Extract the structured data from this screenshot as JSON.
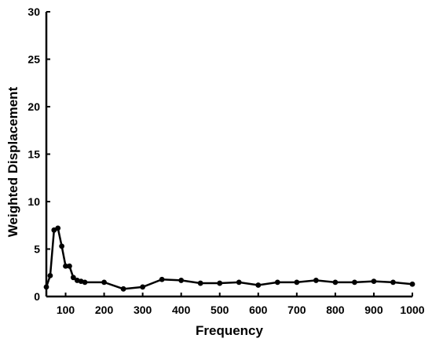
{
  "chart_data": {
    "type": "line",
    "xlabel": "Frequency",
    "ylabel": "Weighted Displacement",
    "xlim": [
      50,
      1000
    ],
    "ylim": [
      0,
      30
    ],
    "xticks": [
      100,
      200,
      300,
      400,
      500,
      600,
      700,
      800,
      900,
      1000
    ],
    "yticks": [
      0,
      5,
      10,
      15,
      20,
      25,
      30
    ],
    "grid": false,
    "colors": {
      "line": "#000000",
      "marker": "#000000"
    },
    "series": [
      {
        "x": [
          50,
          60,
          70,
          80,
          90,
          100,
          110,
          120,
          130,
          140,
          150,
          200,
          250,
          300,
          350,
          400,
          450,
          500,
          550,
          600,
          650,
          700,
          750,
          800,
          850,
          900,
          950,
          1000
        ],
        "y": [
          1.0,
          2.2,
          7.0,
          7.2,
          5.3,
          3.2,
          3.2,
          2.0,
          1.7,
          1.6,
          1.5,
          1.5,
          0.8,
          1.0,
          1.8,
          1.7,
          1.4,
          1.4,
          1.5,
          1.2,
          1.5,
          1.5,
          1.7,
          1.5,
          1.5,
          1.6,
          1.5,
          1.3
        ]
      }
    ]
  }
}
